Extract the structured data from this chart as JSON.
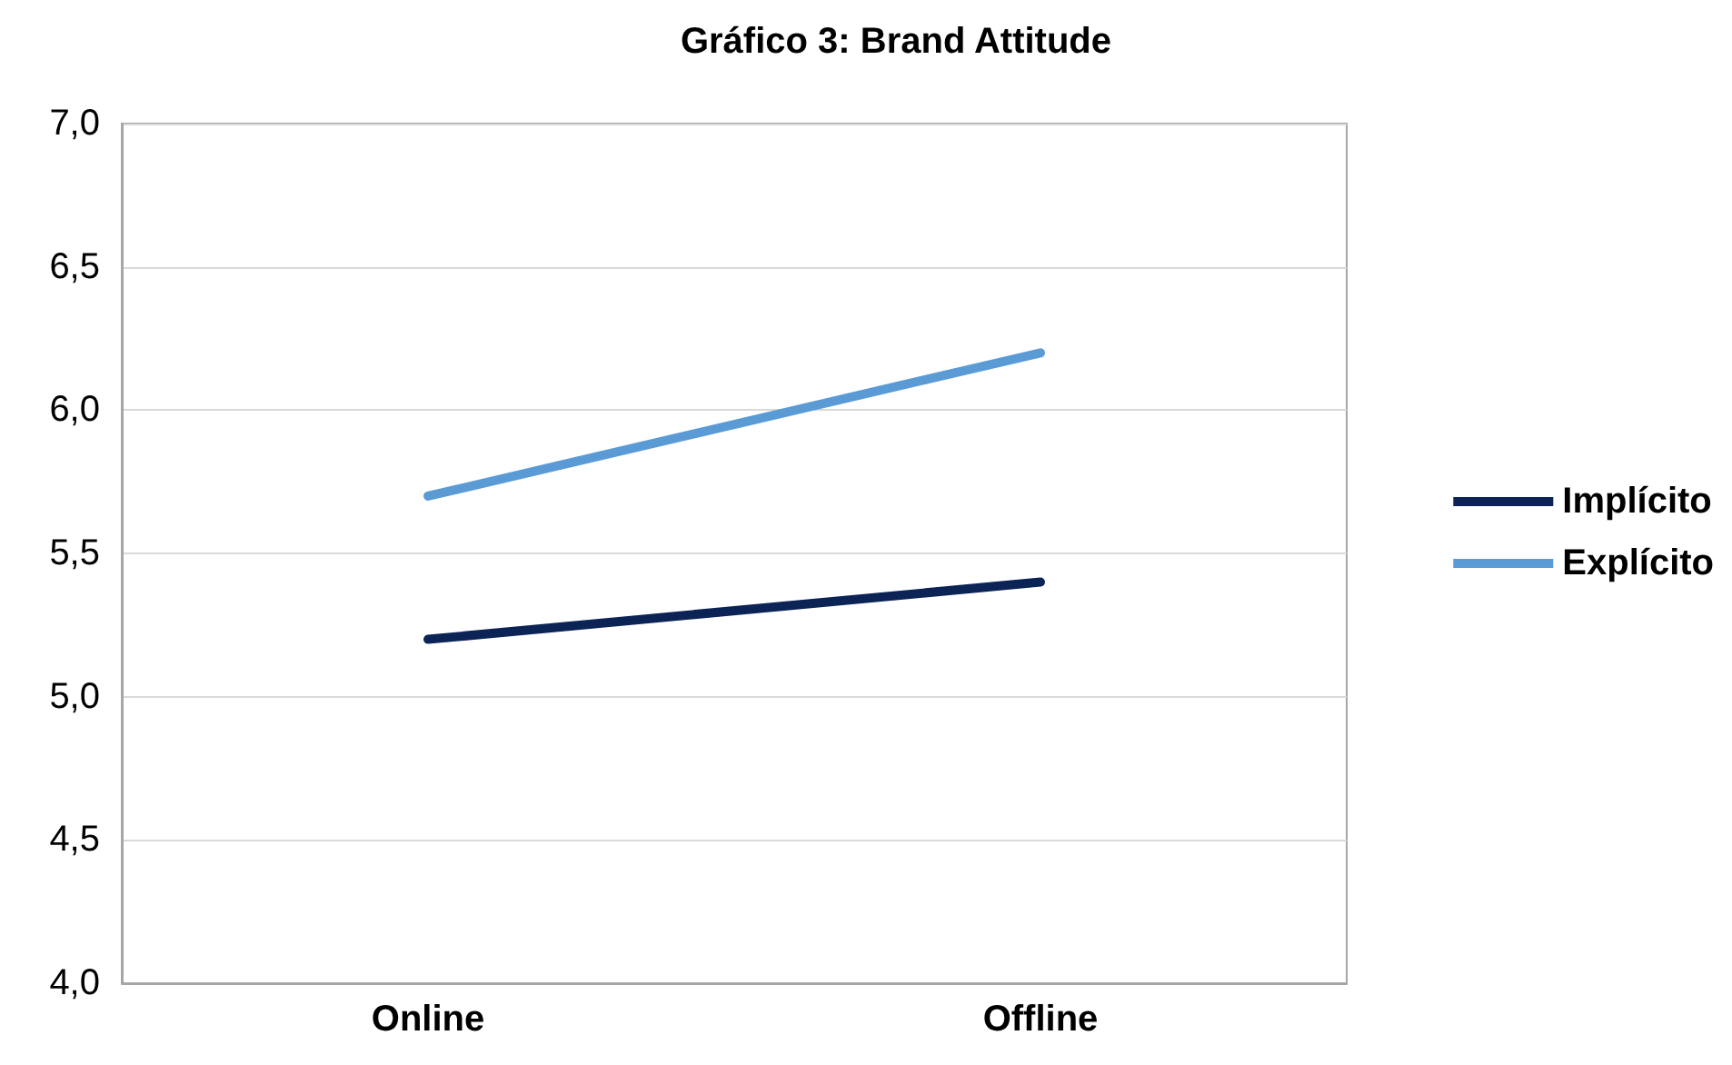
{
  "chart_data": {
    "type": "line",
    "title": "Gráfico 3: Brand Attitude",
    "categories": [
      "Online",
      "Offline"
    ],
    "series": [
      {
        "name": "Implícito",
        "color": "#0c2356",
        "values": [
          5.2,
          5.4
        ]
      },
      {
        "name": "Explícito",
        "color": "#5b9bd5",
        "values": [
          5.7,
          6.2
        ]
      }
    ],
    "ylim": [
      4,
      7
    ],
    "yticks": [
      {
        "value": 4,
        "label": "4,0"
      },
      {
        "value": 4.5,
        "label": "4,5"
      },
      {
        "value": 5,
        "label": "5,0"
      },
      {
        "value": 5.5,
        "label": "5,5"
      },
      {
        "value": 6,
        "label": "6,0"
      },
      {
        "value": 6.5,
        "label": "6,5"
      },
      {
        "value": 7,
        "label": "7,0"
      }
    ],
    "grid": "y",
    "legend": "right",
    "marker": "none",
    "line_style": "solid"
  }
}
